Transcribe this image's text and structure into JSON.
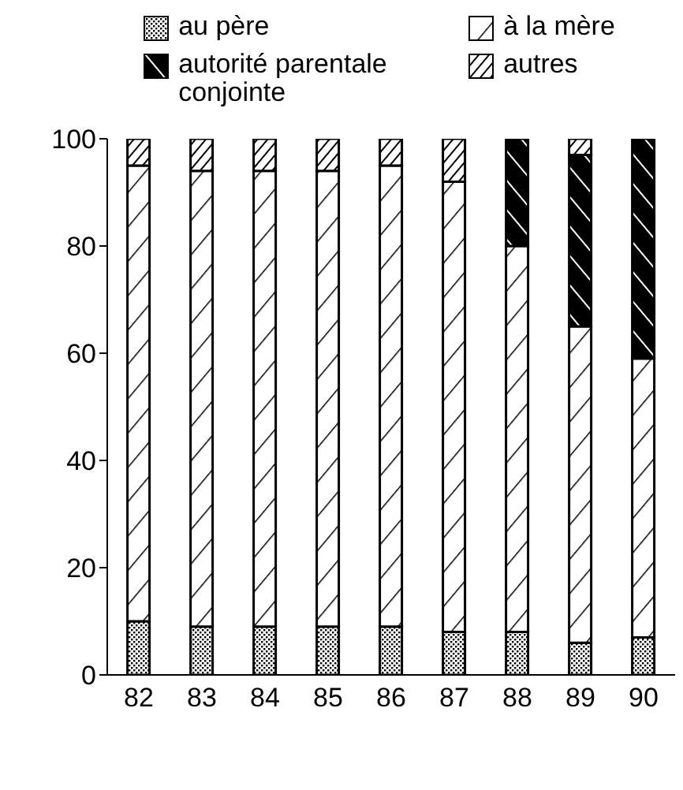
{
  "chart_data": {
    "type": "bar",
    "stacked": true,
    "categories": [
      "82",
      "83",
      "84",
      "85",
      "86",
      "87",
      "88",
      "89",
      "90"
    ],
    "series": [
      {
        "name": "au père",
        "color": "#000000",
        "values": [
          10,
          9,
          9,
          9,
          9,
          8,
          8,
          6,
          7
        ]
      },
      {
        "name": "à la mère",
        "color": "#000000",
        "values": [
          85,
          85,
          85,
          85,
          86,
          84,
          72,
          59,
          52
        ]
      },
      {
        "name": "autorité parentale conjointe",
        "color": "#000000",
        "values": [
          0,
          0,
          0,
          0,
          0,
          0,
          20,
          32,
          41
        ]
      },
      {
        "name": "autres",
        "color": "#000000",
        "values": [
          5,
          6,
          6,
          6,
          5,
          8,
          0,
          3,
          0
        ]
      }
    ],
    "ylim": [
      0,
      100
    ],
    "yticks": [
      0,
      20,
      40,
      60,
      80,
      100
    ],
    "legend": "top"
  }
}
